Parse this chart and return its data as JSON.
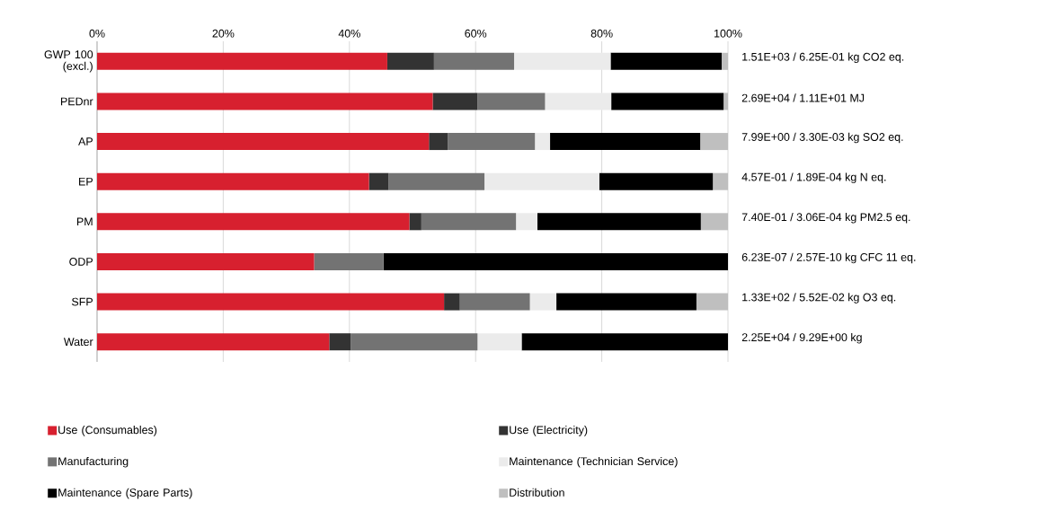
{
  "chart_data": {
    "type": "bar",
    "orientation": "horizontal",
    "stacked": true,
    "categories": [
      "GWP 100 (excl.)",
      "PEDnr",
      "AP",
      "EP",
      "PM",
      "ODP",
      "SFP",
      "Water"
    ],
    "series": [
      {
        "name": "Use (Consumables)",
        "color": "#d7202f",
        "values": [
          46.0,
          53.2,
          52.6,
          43.1,
          49.5,
          34.4,
          55.0,
          36.8
        ]
      },
      {
        "name": "Use (Electricity)",
        "color": "#333333",
        "values": [
          7.4,
          7.1,
          3.0,
          3.1,
          1.9,
          0,
          2.5,
          3.4
        ]
      },
      {
        "name": "Manufacturing",
        "color": "#737373",
        "values": [
          12.7,
          10.7,
          13.8,
          15.2,
          15.0,
          11.0,
          11.1,
          20.1
        ]
      },
      {
        "name": "Maintenance (Technician Service)",
        "color": "#ebebeb",
        "values": [
          15.3,
          10.5,
          2.4,
          18.2,
          3.4,
          0,
          4.2,
          7.0
        ]
      },
      {
        "name": "Maintenance (Spare Parts)",
        "color": "#000000",
        "values": [
          17.6,
          17.8,
          23.8,
          18.0,
          25.9,
          54.6,
          22.2,
          32.7
        ]
      },
      {
        "name": "Distribution",
        "color": "#bfbfbf",
        "values": [
          1.0,
          0.7,
          4.4,
          2.4,
          4.3,
          0,
          5.0,
          0
        ]
      }
    ],
    "xlim": [
      0,
      100
    ],
    "xticks": [
      {
        "value": 0,
        "label": "0%"
      },
      {
        "value": 20,
        "label": "20%"
      },
      {
        "value": 40,
        "label": "40%"
      },
      {
        "value": 60,
        "label": "60%"
      },
      {
        "value": 80,
        "label": "80%"
      },
      {
        "value": 100,
        "label": "100%"
      }
    ],
    "grid": "x",
    "legend": "bottom",
    "annotations": [
      "1.51E+03 / 6.25E-01 kg CO2 eq.",
      "2.69E+04 / 1.11E+01 MJ",
      "7.99E+00 / 3.30E-03 kg SO2 eq.",
      "4.57E-01 / 1.89E-04 kg N eq.",
      "7.40E-01 / 3.06E-04 kg PM2.5 eq.",
      "6.23E-07 / 2.57E-10 kg CFC 11 eq.",
      "1.33E+02 / 5.52E-02 kg O3 eq.",
      "2.25E+04 / 9.29E+00 kg"
    ]
  }
}
